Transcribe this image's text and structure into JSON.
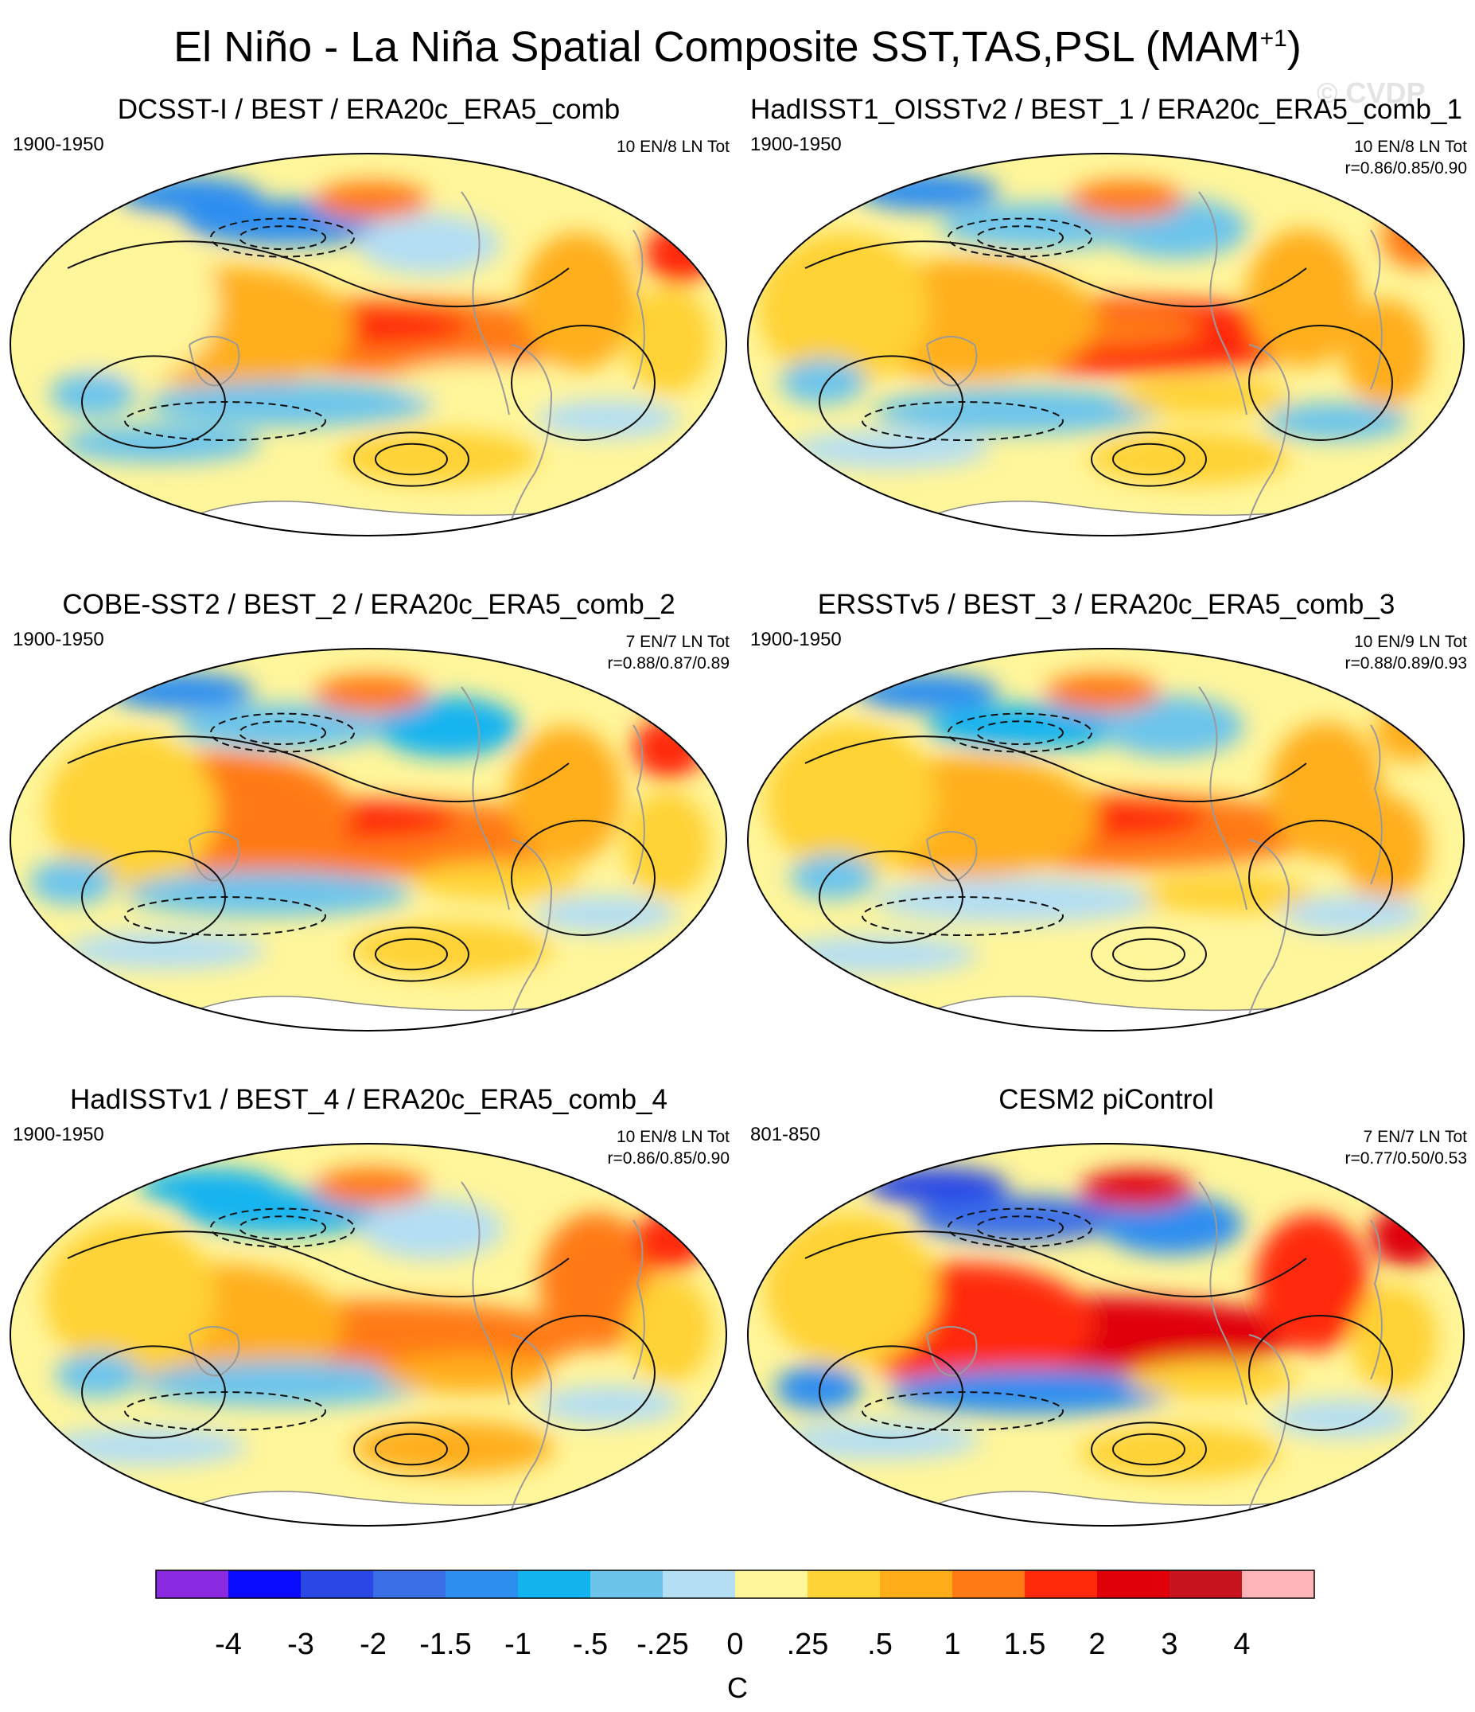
{
  "figure": {
    "title": "El Niño - La Niña Spatial Composite SST,TAS,PSL (MAM",
    "title_sup": "+1",
    "title_close": ")",
    "watermark": "© CVDP"
  },
  "panels": [
    {
      "title": "DCSST-I / BEST / ERA20c_ERA5_comb",
      "years": "1900-1950",
      "counts": "10 EN/8 LN Tot",
      "corr": ""
    },
    {
      "title": "HadISST1_OISSTv2 / BEST_1 / ERA20c_ERA5_comb_1",
      "years": "1900-1950",
      "counts": "10 EN/8 LN Tot",
      "corr": "r=0.86/0.85/0.90"
    },
    {
      "title": "COBE-SST2 / BEST_2 / ERA20c_ERA5_comb_2",
      "years": "1900-1950",
      "counts": "7 EN/7 LN Tot",
      "corr": "r=0.88/0.87/0.89"
    },
    {
      "title": "ERSSTv5 / BEST_3 / ERA20c_ERA5_comb_3",
      "years": "1900-1950",
      "counts": "10 EN/9 LN Tot",
      "corr": "r=0.88/0.89/0.93"
    },
    {
      "title": "HadISSTv1 / BEST_4 / ERA20c_ERA5_comb_4",
      "years": "1900-1950",
      "counts": "10 EN/8 LN Tot",
      "corr": "r=0.86/0.85/0.90"
    },
    {
      "title": "CESM2 piControl",
      "years": "801-850",
      "counts": "7 EN/7 LN Tot",
      "corr": "r=0.77/0.50/0.53"
    }
  ],
  "colorbar": {
    "units": "C",
    "labels": [
      "-4",
      "-3",
      "-2",
      "-1.5",
      "-1",
      "-.5",
      "-.25",
      "0",
      ".25",
      ".5",
      "1",
      "1.5",
      "2",
      "3",
      "4"
    ],
    "colors": [
      "#8a2be2",
      "#0a0aff",
      "#2a48e6",
      "#3a6fe8",
      "#2e8ef0",
      "#12b4f0",
      "#6cc4ec",
      "#b4def4",
      "#fff59a",
      "#ffd235",
      "#ffae1a",
      "#ff7a14",
      "#ff2a0a",
      "#e0000a",
      "#c8141e",
      "#ffb4b8"
    ]
  }
}
